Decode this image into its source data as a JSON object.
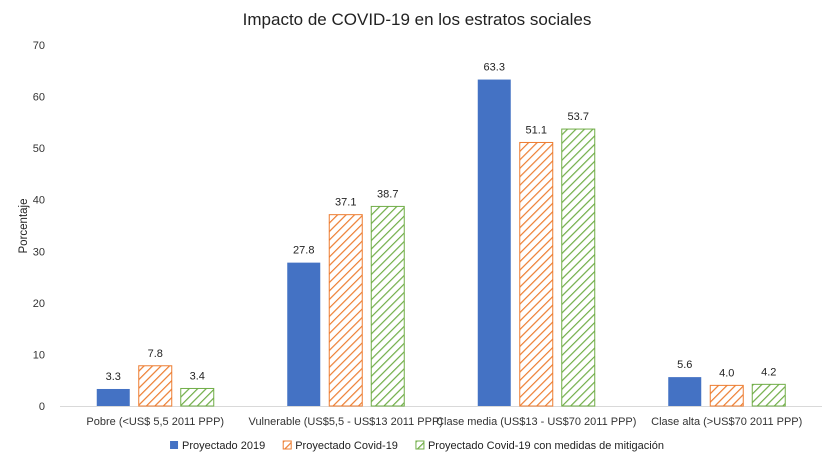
{
  "chart_data": {
    "type": "bar",
    "title": "Impacto de COVID-19 en los estratos sociales",
    "xlabel": "",
    "ylabel": "Porcentaje",
    "ylim": [
      0,
      70
    ],
    "yticks": [
      0,
      10,
      20,
      30,
      40,
      50,
      60,
      70
    ],
    "grid": false,
    "legend_position": "bottom",
    "categories": [
      "Pobre (<US$ 5,5 2011 PPP)",
      "Vulnerable (US$5,5 - US$13 2011 PPP)",
      "Clase media (US$13 - US$70 2011 PPP)",
      "Clase alta (>US$70 2011 PPP)"
    ],
    "series": [
      {
        "name": "Proyectado 2019",
        "values": [
          3.3,
          27.8,
          63.3,
          5.6
        ],
        "labels": [
          "3.3",
          "27.8",
          "63.3",
          "5.6"
        ],
        "color": "#4472C4",
        "fill": "solid"
      },
      {
        "name": "Proyectado Covid-19",
        "values": [
          7.8,
          37.1,
          51.1,
          4.0
        ],
        "labels": [
          "7.8",
          "37.1",
          "51.1",
          "4.0"
        ],
        "color": "#ED7D31",
        "fill": "hatched"
      },
      {
        "name": "Proyectado Covid-19 con medidas de mitigación",
        "values": [
          3.4,
          38.7,
          53.7,
          4.2
        ],
        "labels": [
          "3.4",
          "38.7",
          "53.7",
          "4.2"
        ],
        "color": "#70AD47",
        "fill": "hatched"
      }
    ]
  }
}
